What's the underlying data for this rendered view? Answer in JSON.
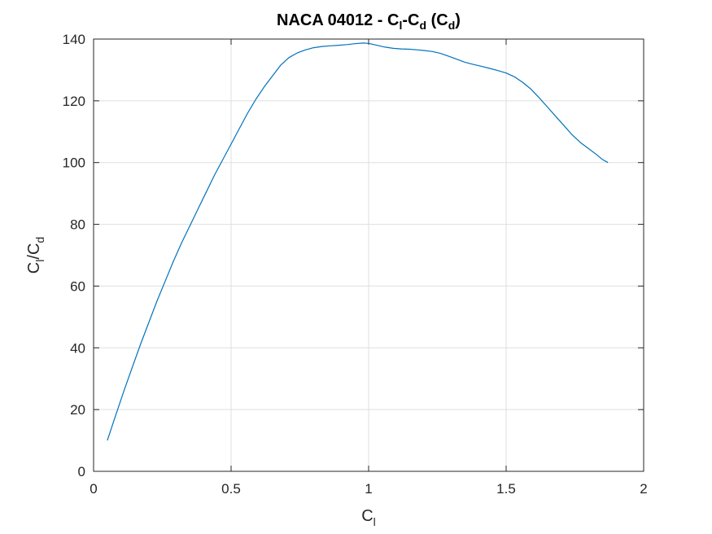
{
  "chart_data": {
    "type": "line",
    "title": {
      "prefix": "NACA 04012 - C",
      "sub1": "l",
      "mid": "-C",
      "sub2": "d",
      "open": " (C",
      "sub3": "d",
      "close": ")"
    },
    "xlabel": {
      "main": "C",
      "sub": "l"
    },
    "ylabel": {
      "main1": "C",
      "sub1": "l",
      "slash": "/C",
      "sub2": "d"
    },
    "xlim": [
      0,
      2
    ],
    "ylim": [
      0,
      140
    ],
    "xticks": [
      0,
      0.5,
      1,
      1.5,
      2
    ],
    "xtick_labels": [
      "0",
      "0.5",
      "1",
      "1.5",
      "2"
    ],
    "yticks": [
      0,
      20,
      40,
      60,
      80,
      100,
      120,
      140
    ],
    "ytick_labels": [
      "0",
      "20",
      "40",
      "60",
      "80",
      "100",
      "120",
      "140"
    ],
    "grid": true,
    "line_color": "#0072bd",
    "series": [
      {
        "x": [
          0.05,
          0.08,
          0.11,
          0.14,
          0.17,
          0.2,
          0.23,
          0.26,
          0.29,
          0.32,
          0.35,
          0.38,
          0.41,
          0.44,
          0.47,
          0.5,
          0.53,
          0.56,
          0.59,
          0.62,
          0.65,
          0.68,
          0.71,
          0.74,
          0.77,
          0.8,
          0.83,
          0.86,
          0.89,
          0.92,
          0.95,
          0.98,
          1.0,
          1.03,
          1.06,
          1.09,
          1.12,
          1.15,
          1.18,
          1.2,
          1.23,
          1.26,
          1.29,
          1.32,
          1.35,
          1.38,
          1.41,
          1.44,
          1.47,
          1.5,
          1.53,
          1.56,
          1.59,
          1.62,
          1.65,
          1.68,
          1.71,
          1.74,
          1.77,
          1.8,
          1.83,
          1.85,
          1.87
        ],
        "y": [
          10,
          18,
          26,
          33.5,
          41,
          48,
          55,
          61.5,
          68,
          74,
          79.5,
          85,
          90.5,
          96,
          101,
          106,
          111,
          116,
          120.5,
          124.5,
          128,
          131.5,
          134,
          135.5,
          136.5,
          137.2,
          137.6,
          137.8,
          138,
          138.2,
          138.5,
          138.7,
          138.6,
          138,
          137.4,
          137,
          136.8,
          136.7,
          136.5,
          136.3,
          136,
          135.4,
          134.5,
          133.5,
          132.5,
          131.8,
          131.2,
          130.5,
          129.8,
          129,
          127.8,
          126,
          123.8,
          121,
          118,
          115,
          112,
          109,
          106.5,
          104.5,
          102.5,
          101,
          100
        ]
      }
    ]
  }
}
